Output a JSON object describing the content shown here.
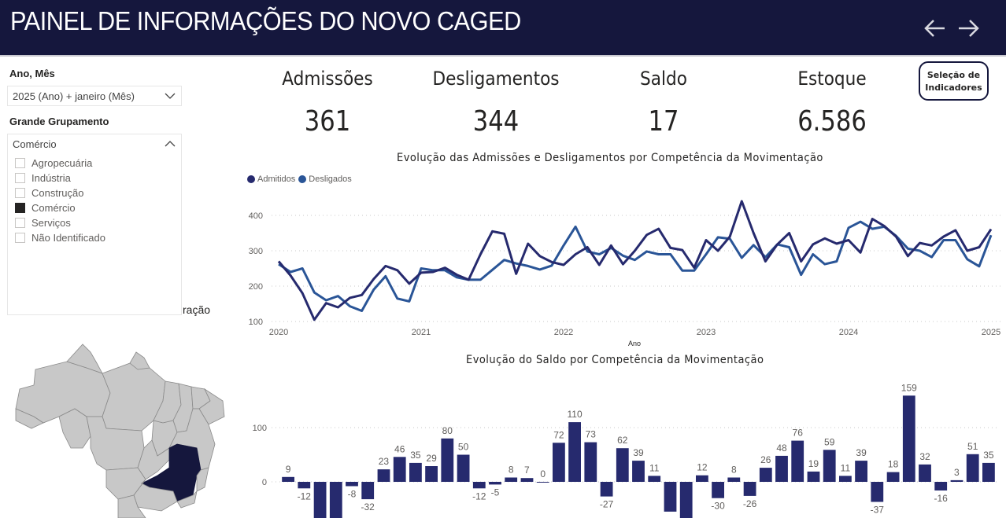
{
  "header": {
    "title": "PAINEL DE INFORMAÇÕES DO NOVO CAGED",
    "back_icon": "arrow-left-icon",
    "forward_icon": "arrow-right-icon"
  },
  "filters": {
    "ano_mes": {
      "label": "Ano, Mês",
      "value": "2025 (Ano) + janeiro (Mês)"
    },
    "grande_grupamento": {
      "label": "Grande Grupamento",
      "value": "Comércio",
      "options": [
        {
          "label": "Agropecuária",
          "checked": false
        },
        {
          "label": "Indústria",
          "checked": false
        },
        {
          "label": "Construção",
          "checked": false
        },
        {
          "label": "Comércio",
          "checked": true
        },
        {
          "label": "Serviços",
          "checked": false
        },
        {
          "label": "Não Identificado",
          "checked": false
        }
      ]
    }
  },
  "map": {
    "title_fragment": "ração",
    "highlighted_state": "Minas Gerais",
    "highlight_color": "#15173d",
    "base_color": "#c8c8c8"
  },
  "kpis": [
    {
      "label": "Admissões",
      "value": "361"
    },
    {
      "label": "Desligamentos",
      "value": "344"
    },
    {
      "label": "Saldo",
      "value": "17"
    },
    {
      "label": "Estoque",
      "value": "6.586"
    }
  ],
  "selection_button": {
    "line1": "Seleção de",
    "line2": "Indicadores"
  },
  "colors": {
    "admitidos": "#262a6e",
    "desligados": "#2a5597",
    "bar": "#262a6e",
    "header_bg": "#15173d"
  },
  "chart_data": [
    {
      "type": "line",
      "title": "Evolução das Admissões e Desligamentos por Competência da Movimentação",
      "xlabel": "Ano",
      "ylabel": "",
      "x_ticks": [
        "2020",
        "2021",
        "2022",
        "2023",
        "2024",
        "2025"
      ],
      "y_ticks": [
        100,
        200,
        300,
        400
      ],
      "ylim": [
        100,
        400
      ],
      "grid": true,
      "legend_position": "top-left",
      "x_start": "2020-01",
      "x_end": "2025-01",
      "series": [
        {
          "name": "Admitidos",
          "values": [
            270,
            230,
            180,
            105,
            152,
            140,
            167,
            175,
            220,
            257,
            245,
            207,
            238,
            240,
            252,
            232,
            218,
            290,
            355,
            348,
            235,
            320,
            285,
            268,
            260,
            290,
            310,
            260,
            315,
            262,
            300,
            345,
            362,
            308,
            302,
            252,
            330,
            300,
            340,
            440,
            350,
            270,
            318,
            350,
            270,
            318,
            335,
            320,
            330,
            295,
            390,
            370,
            340,
            285,
            322,
            315,
            340,
            358,
            300,
            310,
            361
          ]
        },
        {
          "name": "Desligados",
          "values": [
            262,
            240,
            250,
            182,
            160,
            172,
            143,
            130,
            190,
            228,
            165,
            157,
            250,
            245,
            245,
            225,
            218,
            218,
            246,
            274,
            264,
            257,
            247,
            258,
            315,
            368,
            298,
            290,
            308,
            286,
            274,
            298,
            290,
            290,
            244,
            244,
            290,
            338,
            334,
            280,
            316,
            282,
            318,
            310,
            232,
            290,
            262,
            270,
            365,
            382,
            362,
            368,
            342,
            306,
            300,
            282,
            330,
            330,
            276,
            256,
            344
          ]
        }
      ]
    },
    {
      "type": "bar",
      "title": "Evolução do Saldo por Competência da Movimentação",
      "xlabel": "",
      "ylabel": "",
      "y_ticks": [
        0,
        100
      ],
      "grid": true,
      "values": [
        9,
        -12,
        -70,
        -70,
        -8,
        -32,
        23,
        46,
        35,
        29,
        80,
        50,
        -12,
        -5,
        8,
        7,
        0,
        72,
        110,
        73,
        -27,
        62,
        39,
        11,
        -55,
        -70,
        12,
        -30,
        8,
        -26,
        26,
        48,
        76,
        19,
        59,
        11,
        39,
        -37,
        18,
        159,
        32,
        -16,
        3,
        51,
        35
      ],
      "labels": [
        "9",
        "-12",
        "",
        "",
        "-8",
        "-32",
        "23",
        "46",
        "35",
        "29",
        "80",
        "50",
        "-12",
        "-5",
        "8",
        "7",
        "0",
        "72",
        "110",
        "73",
        "-27",
        "62",
        "39",
        "11",
        "",
        "",
        "12",
        "-30",
        "8",
        "-26",
        "26",
        "48",
        "76",
        "19",
        "59",
        "11",
        "39",
        "-37",
        "18",
        "159",
        "32",
        "-16",
        "3",
        "51",
        "35"
      ]
    }
  ]
}
